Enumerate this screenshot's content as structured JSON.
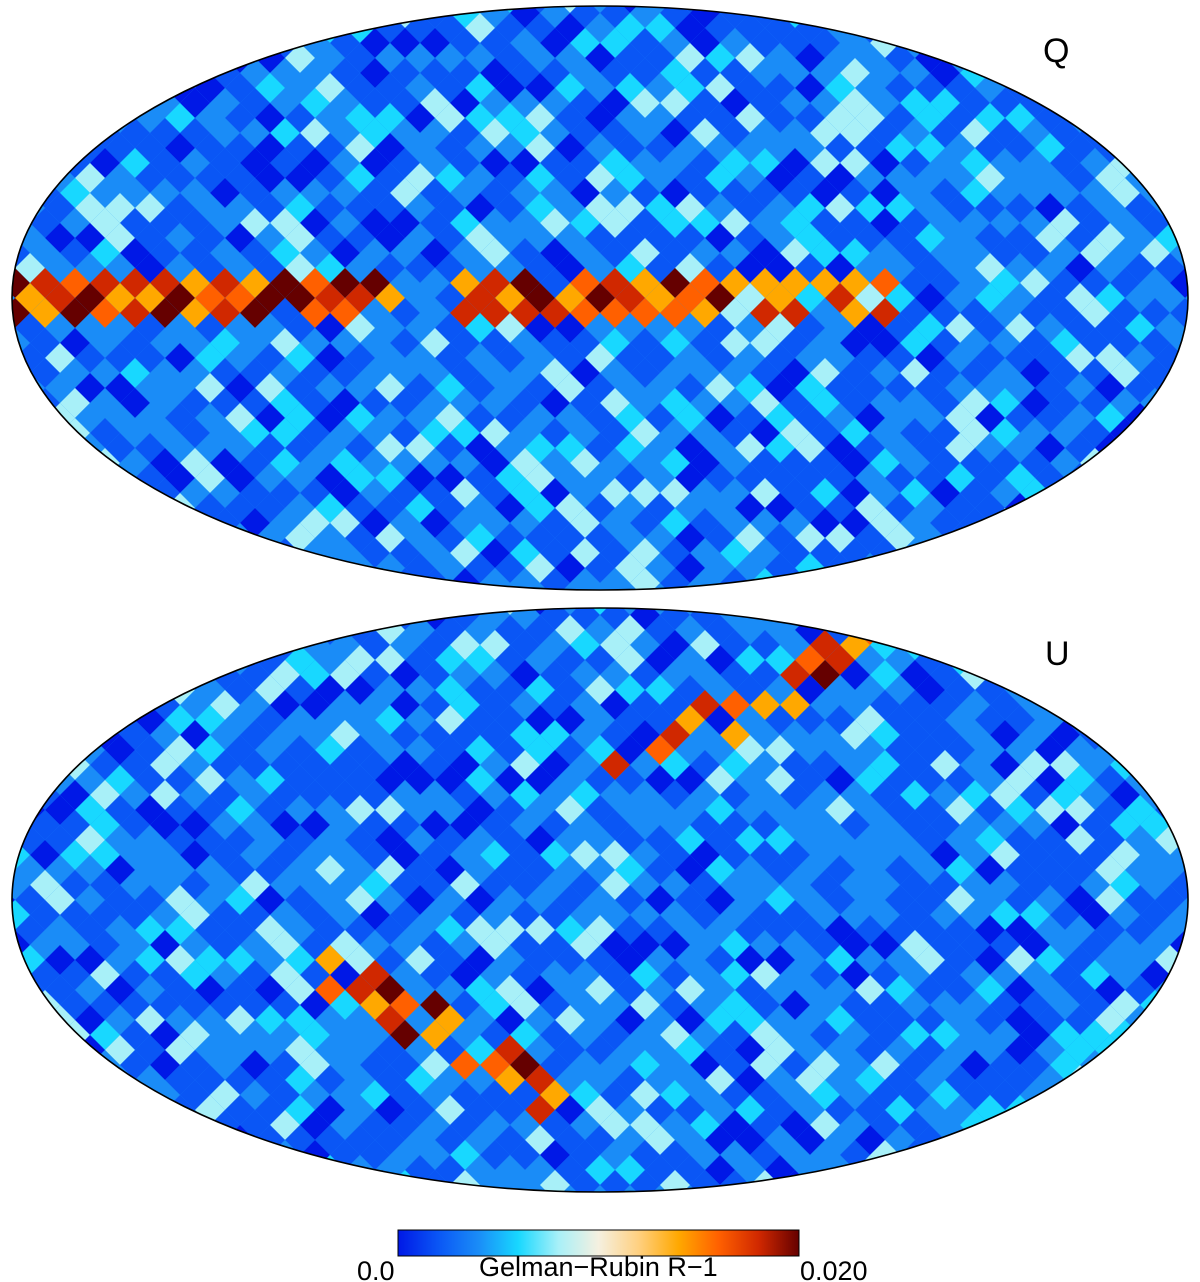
{
  "figure": {
    "panels": [
      {
        "label": "Q"
      },
      {
        "label": "U"
      }
    ],
    "colorbar": {
      "min_label": "0.0",
      "max_label": "0.020",
      "title": "Gelman−Rubin R−1",
      "min": 0.0,
      "max": 0.02,
      "colormap": [
        "#0018e6",
        "#0a56f5",
        "#1a8cf7",
        "#18d8ff",
        "#a8f0f8",
        "#f5f0e0",
        "#ffd080",
        "#ffa800",
        "#ff6000",
        "#d02800",
        "#650000"
      ]
    }
  }
}
